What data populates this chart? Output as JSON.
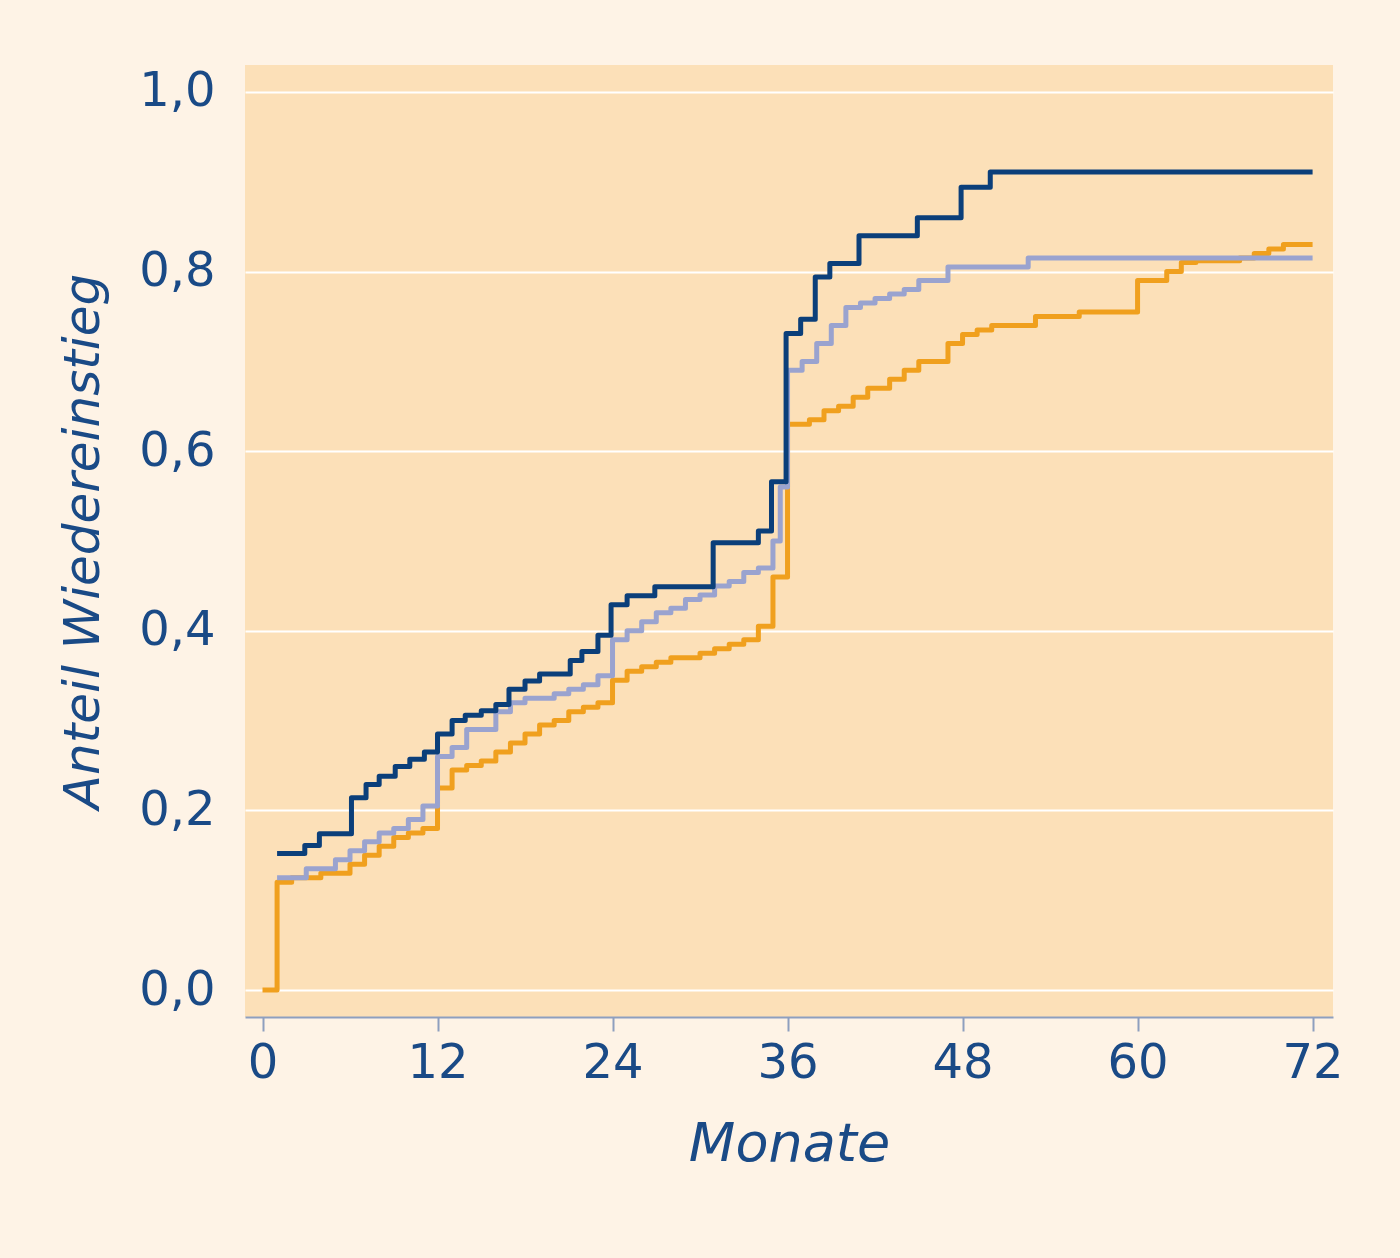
{
  "chart_data": {
    "type": "step",
    "xlabel": "Monate",
    "ylabel": "Anteil Wiedereinstieg",
    "xlim": [
      -1.2,
      73.4
    ],
    "xticks": [
      0,
      12,
      24,
      36,
      48,
      60,
      72
    ],
    "ylim": [
      -0.03,
      1.03
    ],
    "yticks": [
      {
        "value": 0,
        "label": "0,0"
      },
      {
        "value": 0.2,
        "label": "0,2"
      },
      {
        "value": 0.4,
        "label": "0,4"
      },
      {
        "value": 0.6,
        "label": "0,6"
      },
      {
        "value": 0.8,
        "label": "0,8"
      },
      {
        "value": 1,
        "label": "1,0"
      }
    ],
    "grid": "y",
    "line_style": "solid",
    "marker": "none",
    "series": [
      {
        "color": "#f0a01e",
        "x": [
          0,
          1,
          2,
          4,
          6,
          7,
          8,
          9,
          10,
          11,
          12,
          13,
          14,
          15,
          16,
          17,
          18,
          19,
          20,
          21,
          22,
          23,
          24,
          25,
          26,
          27,
          28,
          30,
          31,
          32,
          33,
          34,
          35,
          36,
          37.5,
          38.5,
          39.5,
          40.5,
          41.5,
          43,
          44,
          45,
          47,
          48,
          49,
          50,
          53,
          56,
          60,
          62,
          63,
          64,
          67,
          68,
          69,
          70,
          72
        ],
        "values": [
          0,
          0.12,
          0.125,
          0.13,
          0.14,
          0.15,
          0.16,
          0.17,
          0.175,
          0.18,
          0.225,
          0.245,
          0.25,
          0.255,
          0.265,
          0.275,
          0.285,
          0.295,
          0.3,
          0.31,
          0.315,
          0.32,
          0.345,
          0.355,
          0.36,
          0.365,
          0.37,
          0.375,
          0.38,
          0.385,
          0.39,
          0.405,
          0.46,
          0.63,
          0.635,
          0.645,
          0.65,
          0.66,
          0.67,
          0.68,
          0.69,
          0.7,
          0.72,
          0.73,
          0.735,
          0.74,
          0.75,
          0.755,
          0.79,
          0.8,
          0.81,
          0.812,
          0.815,
          0.82,
          0.825,
          0.83,
          0.83
        ]
      },
      {
        "color": "#9aa3cf",
        "x": [
          1,
          3,
          5,
          6,
          7,
          8,
          9,
          10,
          11,
          12,
          13,
          14,
          16,
          17,
          18,
          20,
          21,
          22,
          23,
          24,
          25,
          26,
          27,
          28,
          29,
          30,
          31,
          32,
          33,
          34,
          35,
          35.5,
          36,
          37,
          38,
          39,
          40,
          41,
          42,
          43,
          44,
          45,
          47,
          52.5,
          72
        ],
        "values": [
          0.125,
          0.135,
          0.145,
          0.155,
          0.165,
          0.175,
          0.18,
          0.19,
          0.205,
          0.26,
          0.27,
          0.29,
          0.31,
          0.32,
          0.325,
          0.33,
          0.335,
          0.34,
          0.35,
          0.39,
          0.4,
          0.41,
          0.42,
          0.425,
          0.435,
          0.44,
          0.45,
          0.455,
          0.465,
          0.47,
          0.5,
          0.56,
          0.69,
          0.7,
          0.72,
          0.74,
          0.76,
          0.765,
          0.77,
          0.775,
          0.78,
          0.79,
          0.805,
          0.815,
          0.815
        ]
      },
      {
        "color": "#0b3f7a",
        "x": [
          1,
          2.9,
          3.9,
          6.1,
          7.1,
          8,
          9.1,
          10.1,
          11.1,
          12,
          13,
          13.9,
          15,
          16,
          16.9,
          18,
          19,
          21.1,
          21.9,
          23,
          23.9,
          25,
          26.9,
          30.9,
          34,
          34.9,
          35.9,
          36.9,
          37.9,
          38.9,
          40.9,
          44.9,
          47.9,
          49.9,
          72
        ],
        "values": [
          0.152,
          0.161,
          0.174,
          0.214,
          0.229,
          0.238,
          0.249,
          0.257,
          0.265,
          0.285,
          0.3,
          0.306,
          0.311,
          0.318,
          0.335,
          0.344,
          0.352,
          0.367,
          0.377,
          0.395,
          0.429,
          0.439,
          0.449,
          0.498,
          0.511,
          0.566,
          0.731,
          0.747,
          0.794,
          0.809,
          0.84,
          0.86,
          0.894,
          0.911,
          0.911
        ]
      }
    ]
  }
}
